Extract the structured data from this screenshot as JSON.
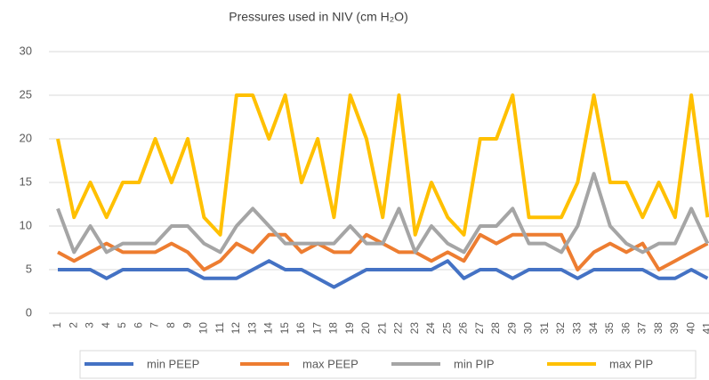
{
  "chart_data": {
    "type": "line",
    "title": "Pressures used in NIV (cm H₂O)",
    "categories": [
      "1",
      "2",
      "3",
      "4",
      "5",
      "6",
      "7",
      "8",
      "9",
      "10",
      "11",
      "12",
      "13",
      "14",
      "15",
      "16",
      "17",
      "18",
      "19",
      "20",
      "21",
      "22",
      "23",
      "24",
      "25",
      "26",
      "27",
      "28",
      "29",
      "30",
      "31",
      "32",
      "33",
      "34",
      "35",
      "36",
      "37",
      "38",
      "39",
      "40",
      "41"
    ],
    "series": [
      {
        "name": "min PEEP",
        "color": "#4472c4",
        "values": [
          5,
          5,
          5,
          4,
          5,
          5,
          5,
          5,
          5,
          4,
          4,
          4,
          5,
          6,
          5,
          5,
          4,
          3,
          4,
          5,
          5,
          5,
          5,
          5,
          6,
          4,
          5,
          5,
          4,
          5,
          5,
          5,
          4,
          5,
          5,
          5,
          5,
          4,
          4,
          5,
          4
        ]
      },
      {
        "name": "max PEEP",
        "color": "#ed7d31",
        "values": [
          7,
          6,
          7,
          8,
          7,
          7,
          7,
          8,
          7,
          5,
          6,
          8,
          7,
          9,
          9,
          7,
          8,
          7,
          7,
          9,
          8,
          7,
          7,
          6,
          7,
          6,
          9,
          8,
          9,
          9,
          9,
          9,
          5,
          7,
          8,
          7,
          8,
          5,
          6,
          7,
          8
        ]
      },
      {
        "name": "min PIP",
        "color": "#a5a5a5",
        "values": [
          12,
          7,
          10,
          7,
          8,
          8,
          8,
          10,
          10,
          8,
          7,
          10,
          12,
          10,
          8,
          8,
          8,
          8,
          10,
          8,
          8,
          12,
          7,
          10,
          8,
          7,
          10,
          10,
          12,
          8,
          8,
          7,
          10,
          16,
          10,
          8,
          7,
          8,
          8,
          12,
          8
        ]
      },
      {
        "name": "max PIP",
        "color": "#ffc000",
        "values": [
          20,
          11,
          15,
          11,
          15,
          15,
          20,
          15,
          20,
          11,
          9,
          25,
          25,
          20,
          25,
          15,
          20,
          11,
          25,
          20,
          11,
          25,
          9,
          15,
          11,
          9,
          20,
          20,
          25,
          11,
          11,
          11,
          15,
          25,
          15,
          15,
          11,
          15,
          11,
          25,
          11
        ]
      }
    ],
    "ylim": [
      0,
      30
    ],
    "yticks": [
      0,
      5,
      10,
      15,
      20,
      25,
      30
    ],
    "grid": true,
    "legend": "bottom"
  }
}
